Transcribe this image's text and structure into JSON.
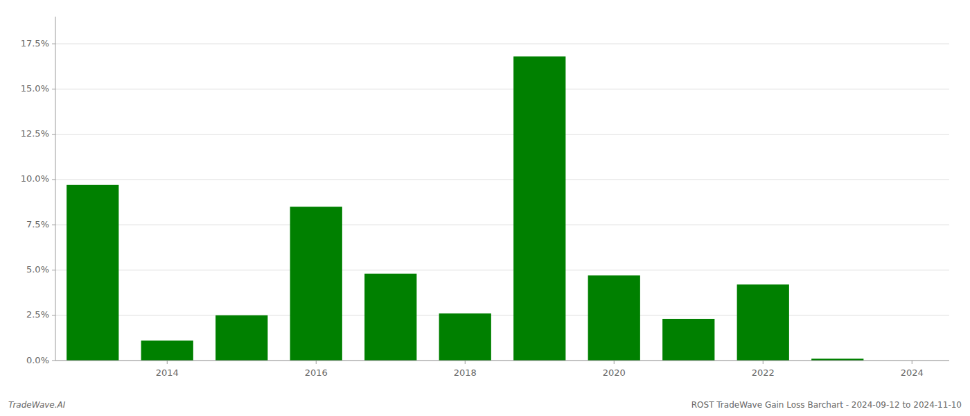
{
  "chart_data": {
    "type": "bar",
    "x": [
      2013,
      2014,
      2015,
      2016,
      2017,
      2018,
      2019,
      2020,
      2021,
      2022,
      2023
    ],
    "values": [
      0.097,
      0.011,
      0.025,
      0.085,
      0.048,
      0.026,
      0.168,
      0.047,
      0.023,
      0.042,
      0.001
    ],
    "color": "#008000",
    "xlim": [
      2012.5,
      2024.5
    ],
    "xticks": [
      2014,
      2016,
      2018,
      2020,
      2022,
      2024
    ],
    "ylim": [
      0,
      0.19
    ],
    "yticks": [
      {
        "value": 0,
        "label": "0.0%"
      },
      {
        "value": 0.025,
        "label": "2.5%"
      },
      {
        "value": 0.05,
        "label": "5.0%"
      },
      {
        "value": 0.075,
        "label": "7.5%"
      },
      {
        "value": 0.1,
        "label": "10.0%"
      },
      {
        "value": 0.125,
        "label": "12.5%"
      },
      {
        "value": 0.15,
        "label": "15.0%"
      },
      {
        "value": 0.175,
        "label": "17.5%"
      }
    ],
    "grid": true,
    "annotations": [
      "TradeWave.AI",
      "ROST TradeWave Gain Loss Barchart - 2024-09-12 to 2024-11-10"
    ]
  }
}
